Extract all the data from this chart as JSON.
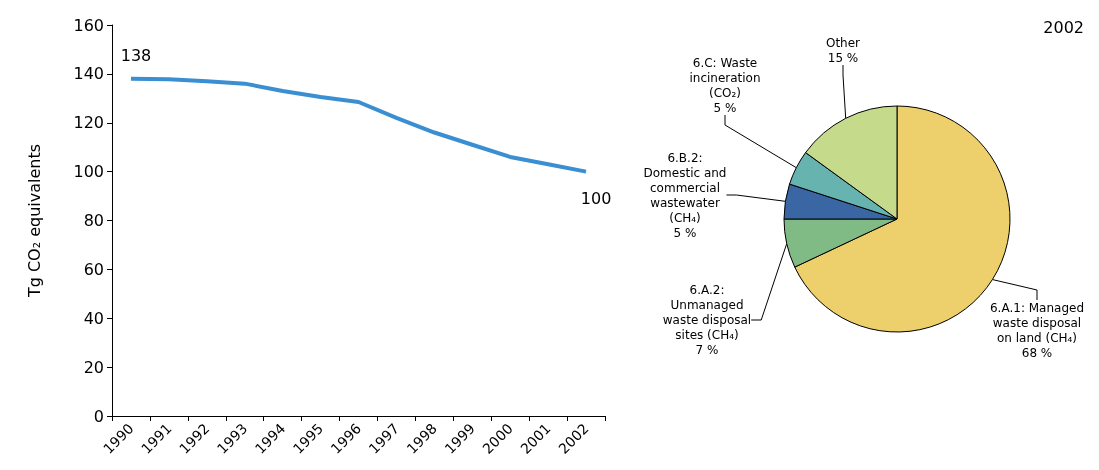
{
  "chart_data": [
    {
      "type": "line",
      "ylabel": "Tg CO₂ equivalents",
      "categories": [
        "1990",
        "1991",
        "1992",
        "1993",
        "1994",
        "1995",
        "1996",
        "1997",
        "1998",
        "1999",
        "2000",
        "2001",
        "2002"
      ],
      "series": [
        {
          "color": "#3a8fd3",
          "values": [
            138,
            137.8,
            137,
            136,
            133,
            130.5,
            128.5,
            122,
            116,
            111,
            106,
            103,
            100
          ],
          "value_labels": [
            "138",
            null,
            null,
            null,
            null,
            null,
            null,
            null,
            null,
            null,
            null,
            null,
            "100"
          ]
        }
      ],
      "ylim": [
        0,
        160
      ],
      "yticks": [
        0,
        20,
        40,
        60,
        80,
        100,
        120,
        140,
        160
      ],
      "grid": false,
      "legend": false,
      "marker": "none",
      "line_style": "solid"
    },
    {
      "type": "pie",
      "title": "2002",
      "categories": [
        "6.A.1: Managed waste disposal on land (CH₄)",
        "6.A.2: Unmanaged waste disposal sites (CH₄)",
        "6.B.2: Domestic and commercial wastewater (CH₄)",
        "6.C: Waste incineration (CO₂)",
        "Other"
      ],
      "values": [
        68,
        7,
        5,
        5,
        15
      ],
      "value_labels": [
        "68 %",
        "7 %",
        "5 %",
        "5 %",
        "15 %"
      ],
      "colors": [
        "#edd06b",
        "#80bb85",
        "#3a66a3",
        "#66b3b0",
        "#c5da8b"
      ],
      "legend": false
    }
  ]
}
